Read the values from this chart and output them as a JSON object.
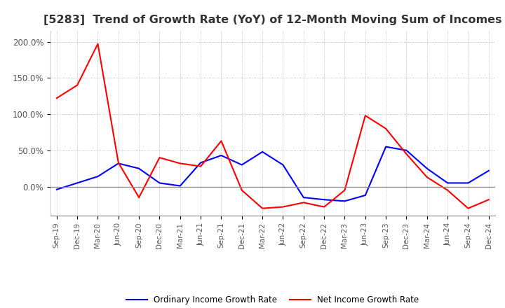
{
  "title": "[5283]  Trend of Growth Rate (YoY) of 12-Month Moving Sum of Incomes",
  "title_fontsize": 11.5,
  "ylim": [
    -40,
    215
  ],
  "yticks": [
    0,
    50,
    100,
    150,
    200
  ],
  "ytick_labels": [
    "0.0%",
    "50.0%",
    "100.0%",
    "150.0%",
    "200.0%"
  ],
  "x_labels": [
    "Sep-19",
    "Dec-19",
    "Mar-20",
    "Jun-20",
    "Sep-20",
    "Dec-20",
    "Mar-21",
    "Jun-21",
    "Sep-21",
    "Dec-21",
    "Mar-22",
    "Jun-22",
    "Sep-22",
    "Dec-22",
    "Mar-23",
    "Jun-23",
    "Sep-23",
    "Dec-23",
    "Mar-24",
    "Jun-24",
    "Sep-24",
    "Dec-24"
  ],
  "ordinary_income": [
    -4,
    5,
    14,
    32,
    25,
    5,
    1,
    33,
    43,
    30,
    48,
    30,
    -15,
    -18,
    -20,
    -12,
    55,
    50,
    25,
    5,
    5,
    22
  ],
  "net_income": [
    122,
    140,
    197,
    33,
    -15,
    40,
    32,
    28,
    63,
    -5,
    -30,
    -28,
    -22,
    -28,
    -5,
    98,
    80,
    45,
    13,
    -5,
    -30,
    -18
  ],
  "ordinary_color": "#0000ff",
  "net_color": "#ff0000",
  "line_width": 1.5,
  "legend_ordinary": "Ordinary Income Growth Rate",
  "legend_net": "Net Income Growth Rate",
  "background_color": "#ffffff",
  "grid_color": "#aaaaaa",
  "grid_style": ":"
}
